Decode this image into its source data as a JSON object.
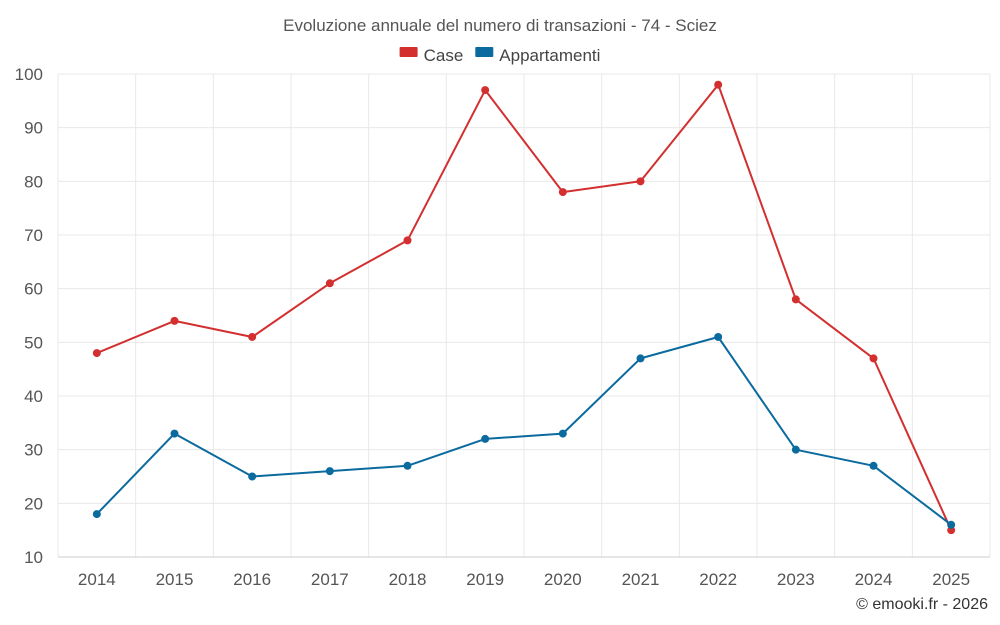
{
  "chart_data": {
    "type": "line",
    "title": "Evoluzione annuale del numero di transazioni - 74 - Sciez",
    "categories": [
      "2014",
      "2015",
      "2016",
      "2017",
      "2018",
      "2019",
      "2020",
      "2021",
      "2022",
      "2023",
      "2024",
      "2025"
    ],
    "series": [
      {
        "name": "Case",
        "color": "#d32f2f",
        "values": [
          48,
          54,
          51,
          61,
          69,
          97,
          78,
          80,
          98,
          58,
          47,
          15
        ]
      },
      {
        "name": "Appartamenti",
        "color": "#0b6a9e",
        "values": [
          18,
          33,
          25,
          26,
          27,
          32,
          33,
          47,
          51,
          30,
          27,
          16
        ]
      }
    ],
    "ylim": [
      10,
      100
    ],
    "yticks": [
      10,
      20,
      30,
      40,
      50,
      60,
      70,
      80,
      90,
      100
    ],
    "grid": true,
    "legend_position": "top-center",
    "xlabel": "",
    "ylabel": ""
  },
  "credit": "© emooki.fr - 2026"
}
